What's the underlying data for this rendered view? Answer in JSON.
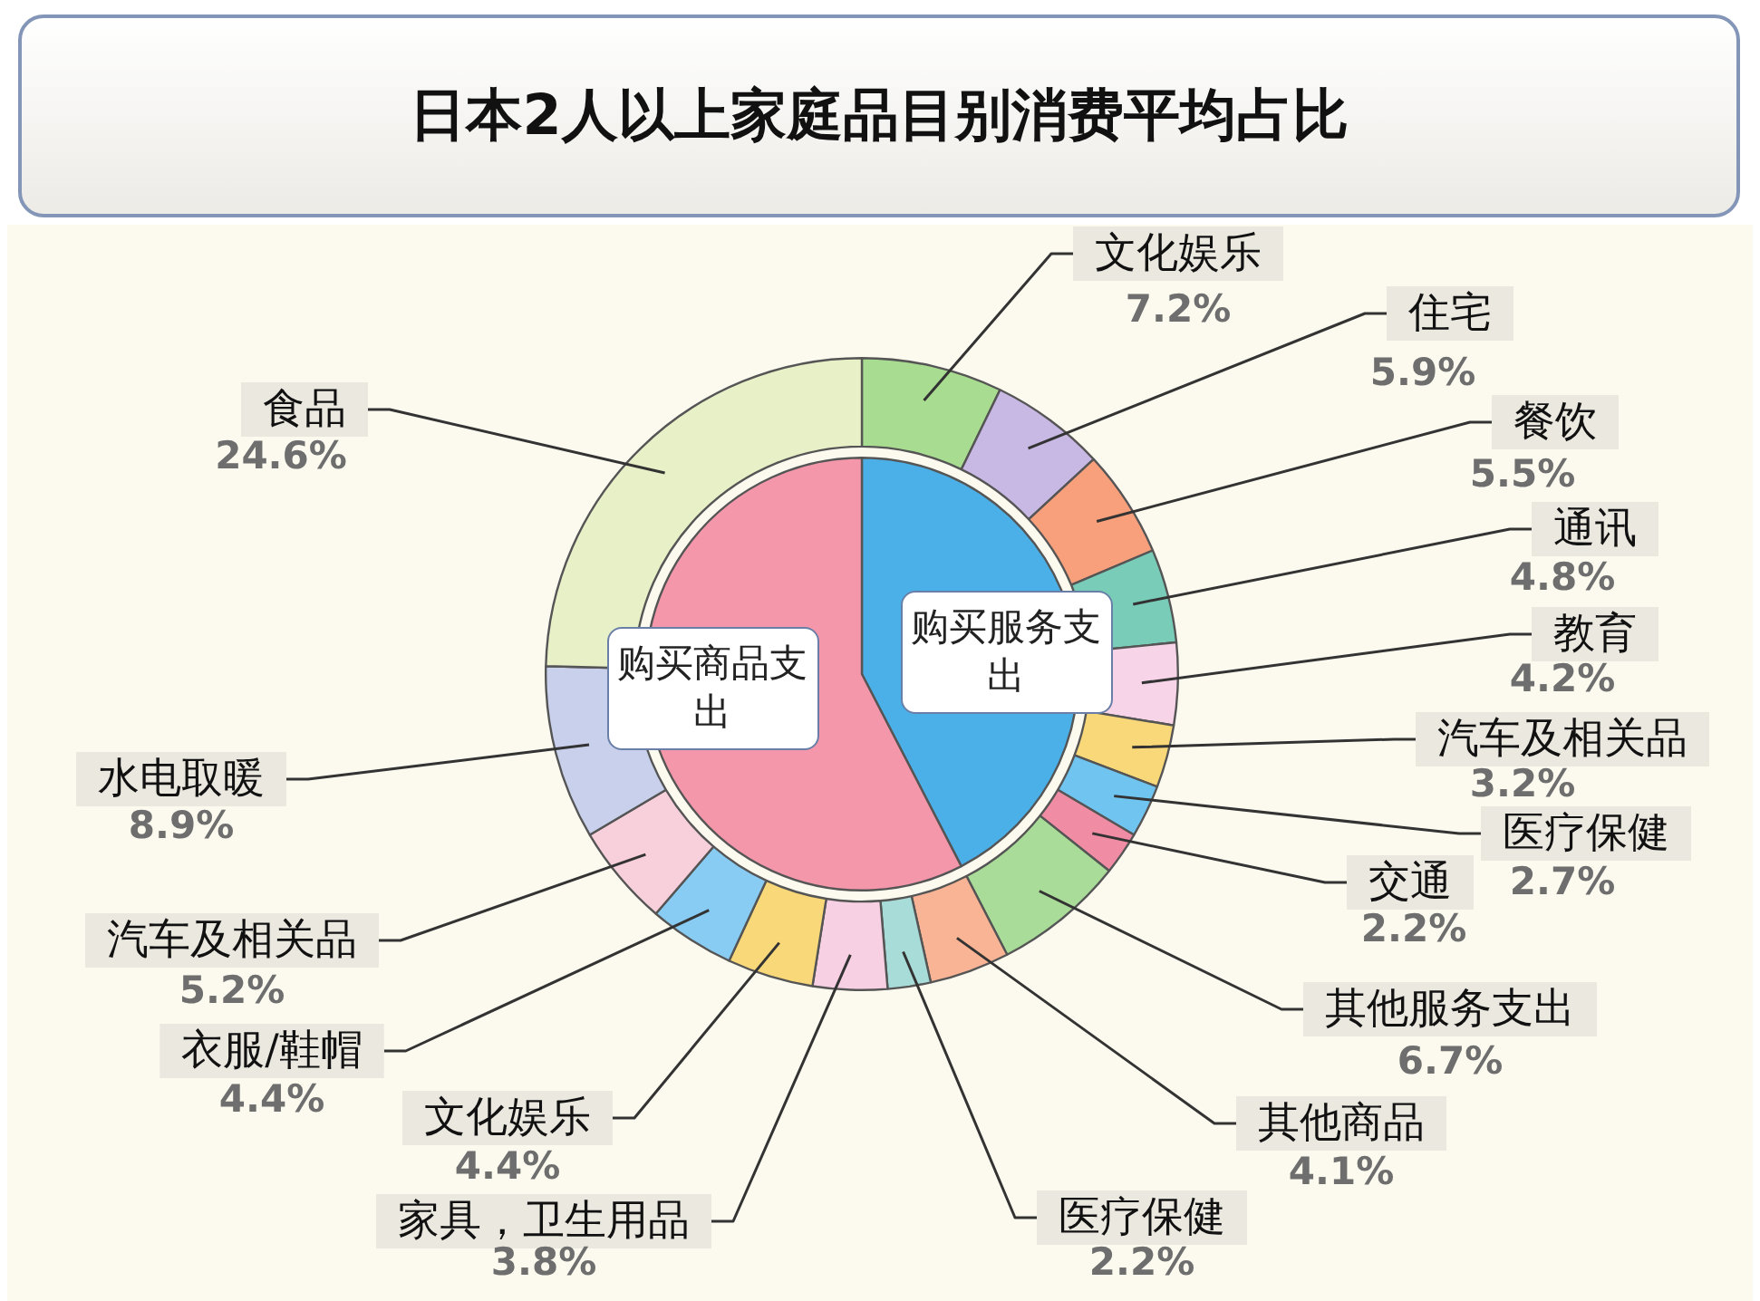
{
  "chart_data": [
    {
      "type": "donut",
      "title": "日本2人以上家庭品目别消费平均占比",
      "categories": [
        "文化娱乐",
        "住宅",
        "餐饮",
        "通讯",
        "教育",
        "汽车及相关品",
        "医疗保健",
        "交通",
        "其他服务支出",
        "其他商品",
        "医疗保健",
        "家具，卫生用品",
        "文化娱乐",
        "衣服/鞋帽",
        "汽车及相关品",
        "水电取暖",
        "食品"
      ],
      "values": [
        7.2,
        5.9,
        5.5,
        4.8,
        4.2,
        3.2,
        2.7,
        2.2,
        6.7,
        4.1,
        2.2,
        3.8,
        4.4,
        4.4,
        5.2,
        8.9,
        24.6
      ],
      "colors": [
        "#a8dc90",
        "#c8b8e4",
        "#f8a07c",
        "#78ccb8",
        "#f8d4e8",
        "#f8d878",
        "#70c4f0",
        "#f08ca4",
        "#a8dc98",
        "#f8b494",
        "#a8dcd8",
        "#f8d0e4",
        "#f8d878",
        "#88ccf4",
        "#f8d0dc",
        "#c8d0ec",
        "#e8f0c8"
      ],
      "value_labels": [
        "7.2%",
        "5.9%",
        "5.5%",
        "4.8%",
        "4.2%",
        "3.2%",
        "2.7%",
        "2.2%",
        "6.7%",
        "4.1%",
        "2.2%",
        "3.8%",
        "4.4%",
        "4.4%",
        "5.2%",
        "8.9%",
        "24.6%"
      ]
    },
    {
      "type": "pie",
      "categories": [
        "购买服务支出",
        "购买商品支出"
      ],
      "values": [
        42.4,
        57.6
      ],
      "colors": [
        "#4cb0e8",
        "#f497ab"
      ]
    }
  ]
}
